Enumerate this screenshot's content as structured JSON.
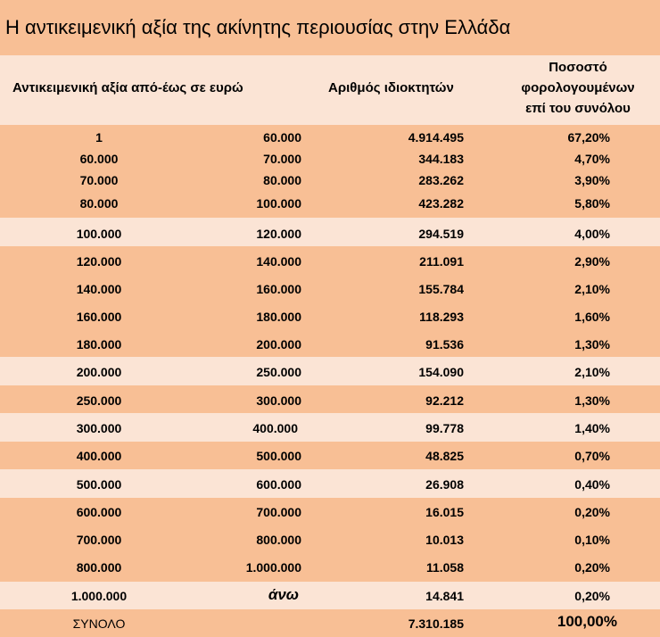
{
  "title": "Η αντικειμενική αξία της ακίνητης περιουσίας στην Ελλάδα",
  "headers": {
    "range": "Αντικειμενική αξία από-έως σε ευρώ",
    "owners": "Αριθμός ιδιοκτητών",
    "pct_line1": "Ποσοστό",
    "pct_line2": "φορολογουμένων",
    "pct_line3": "επί του συνόλου"
  },
  "rows": [
    {
      "from": "1",
      "to": "60.000",
      "owners": "4.914.495",
      "pct": "67,20%"
    },
    {
      "from": "60.000",
      "to": "70.000",
      "owners": "344.183",
      "pct": "4,70%"
    },
    {
      "from": "70.000",
      "to": "80.000",
      "owners": "283.262",
      "pct": "3,90%"
    },
    {
      "from": "80.000",
      "to": "100.000",
      "owners": "423.282",
      "pct": "5,80%"
    },
    {
      "from": "100.000",
      "to": "120.000",
      "owners": "294.519",
      "pct": "4,00%"
    },
    {
      "from": "120.000",
      "to": "140.000",
      "owners": "211.091",
      "pct": "2,90%"
    },
    {
      "from": "140.000",
      "to": "160.000",
      "owners": "155.784",
      "pct": "2,10%"
    },
    {
      "from": "160.000",
      "to": "180.000",
      "owners": "118.293",
      "pct": "1,60%"
    },
    {
      "from": "180.000",
      "to": "200.000",
      "owners": "91.536",
      "pct": "1,30%"
    },
    {
      "from": "200.000",
      "to": "250.000",
      "owners": "154.090",
      "pct": "2,10%"
    },
    {
      "from": "250.000",
      "to": "300.000",
      "owners": "92.212",
      "pct": "1,30%"
    },
    {
      "from": "300.000",
      "to": "400.000",
      "owners": "99.778",
      "pct": "1,40%"
    },
    {
      "from": "400.000",
      "to": "500.000",
      "owners": "48.825",
      "pct": "0,70%"
    },
    {
      "from": "500.000",
      "to": "600.000",
      "owners": "26.908",
      "pct": "0,40%"
    },
    {
      "from": "600.000",
      "to": "700.000",
      "owners": "16.015",
      "pct": "0,20%"
    },
    {
      "from": "700.000",
      "to": "800.000",
      "owners": "10.013",
      "pct": "0,10%"
    },
    {
      "from": "800.000",
      "to": "1.000.000",
      "owners": "11.058",
      "pct": "0,20%"
    },
    {
      "from": "1.000.000",
      "to": "άνω",
      "owners": "14.841",
      "pct": "0,20%"
    }
  ],
  "total": {
    "label": "ΣΥΝΟΛΟ",
    "owners": "7.310.185",
    "pct": "100,00%"
  }
}
